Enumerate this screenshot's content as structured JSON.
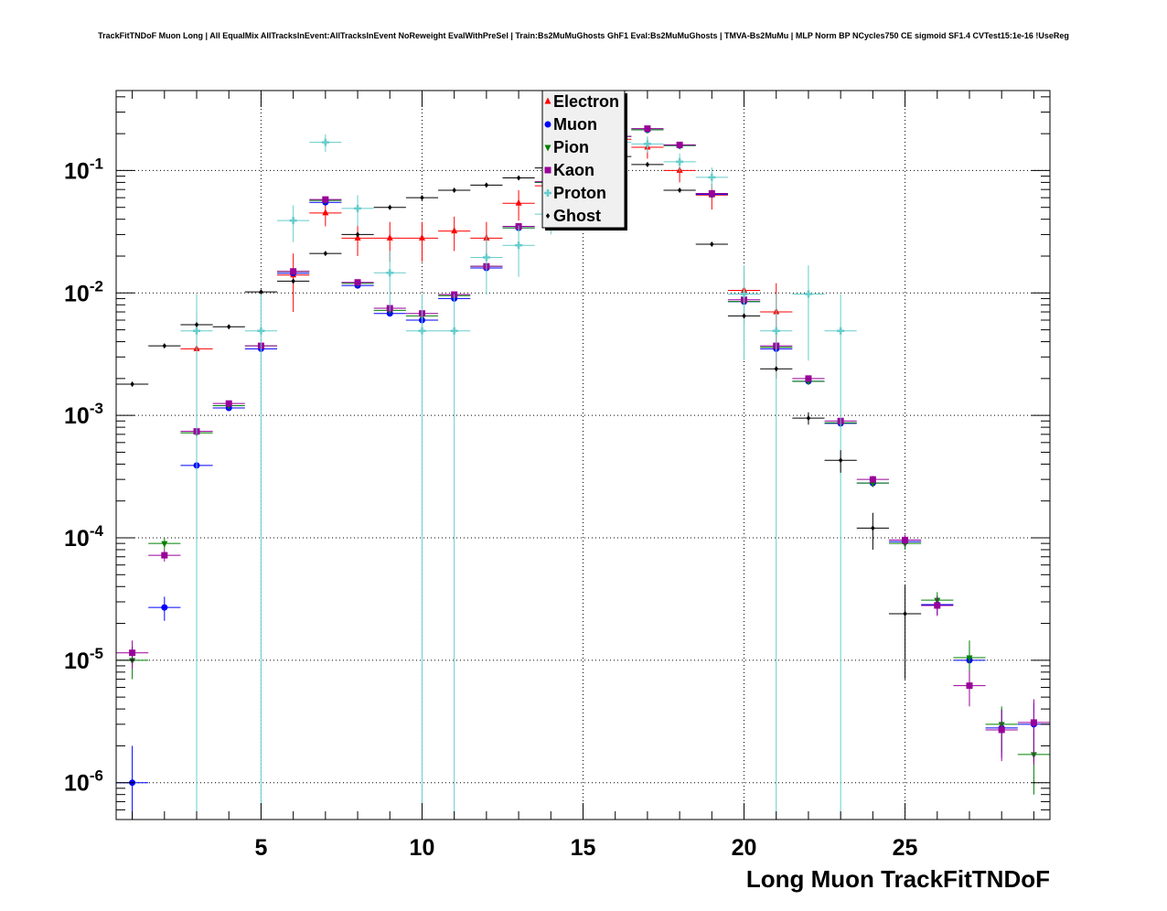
{
  "title": "TrackFitTNDoF Muon Long | All EqualMix AllTracksInEvent:AllTracksInEvent NoReweight EvalWithPreSel | Train:Bs2MuMuGhosts GhF1 Eval:Bs2MuMuGhosts | TMVA-Bs2MuMu | MLP Norm BP NCycles750 CE sigmoid SF1.4 CVTest15:1e-16 !UseReg",
  "chart_data": {
    "type": "scatter",
    "xlabel": "Long Muon TrackFitTNDoF",
    "ylabel": "",
    "xlim": [
      0.5,
      29.5
    ],
    "ylim": [
      5e-07,
      0.45
    ],
    "yscale": "log",
    "grid": true,
    "legend_position": "top-center",
    "x_ticks": [
      5,
      10,
      15,
      20,
      25
    ],
    "y_ticks": [
      {
        "value": 1e-06,
        "base": "10",
        "exp": "-6"
      },
      {
        "value": 1e-05,
        "base": "10",
        "exp": "-5"
      },
      {
        "value": 0.0001,
        "base": "10",
        "exp": "-4"
      },
      {
        "value": 0.001,
        "base": "10",
        "exp": "-3"
      },
      {
        "value": 0.01,
        "base": "10",
        "exp": "-2"
      },
      {
        "value": 0.1,
        "base": "10",
        "exp": "-1"
      }
    ],
    "series": [
      {
        "name": "Electron",
        "color": "#ff0000",
        "marker": "triangle-up",
        "points": [
          [
            3,
            0.0035,
            0.0034
          ],
          [
            6,
            0.014,
            0.007
          ],
          [
            7,
            0.045,
            0.01
          ],
          [
            8,
            0.028,
            0.008
          ],
          [
            9,
            0.028,
            0.01
          ],
          [
            10,
            0.028,
            0.01
          ],
          [
            11,
            0.032,
            0.01
          ],
          [
            12,
            0.028,
            0.01
          ],
          [
            13,
            0.054,
            0.015
          ],
          [
            14,
            0.075,
            0.02
          ],
          [
            15,
            0.13,
            0.03
          ],
          [
            16,
            0.18,
            0.04
          ],
          [
            17,
            0.155,
            0.03
          ],
          [
            18,
            0.1,
            0.02
          ],
          [
            19,
            0.063,
            0.015
          ],
          [
            20,
            0.0105,
            0.005
          ],
          [
            21,
            0.007,
            0.005
          ]
        ]
      },
      {
        "name": "Muon",
        "color": "#0000ff",
        "marker": "circle",
        "points": [
          [
            1,
            1e-06,
            1e-06
          ],
          [
            2,
            2.7e-05,
            6e-06
          ],
          [
            3,
            0.00039,
            1.5e-05
          ],
          [
            4,
            0.00115,
            5e-05
          ],
          [
            5,
            0.0035,
            0.0001
          ],
          [
            6,
            0.0145,
            0.0003
          ],
          [
            7,
            0.055,
            0.0006
          ],
          [
            8,
            0.0115,
            0.0002
          ],
          [
            9,
            0.0068,
            0.00015
          ],
          [
            10,
            0.006,
            0.00015
          ],
          [
            11,
            0.009,
            0.0002
          ],
          [
            12,
            0.016,
            0.0003
          ],
          [
            13,
            0.034,
            0.0005
          ],
          [
            14,
            0.08,
            0.0008
          ],
          [
            15,
            0.13,
            0.001
          ],
          [
            16,
            0.19,
            0.0015
          ],
          [
            17,
            0.215,
            0.0015
          ],
          [
            18,
            0.16,
            0.0012
          ],
          [
            19,
            0.064,
            0.0008
          ],
          [
            20,
            0.0085,
            0.0002
          ],
          [
            21,
            0.0035,
            0.00012
          ],
          [
            22,
            0.0019,
            8e-05
          ],
          [
            23,
            0.00086,
            5e-05
          ],
          [
            24,
            0.00028,
            2e-05
          ],
          [
            25,
            9.3e-05,
            1e-05
          ],
          [
            26,
            2.85e-05,
            5e-06
          ],
          [
            27,
            1e-05,
            3e-06
          ],
          [
            28,
            2.8e-06,
            1.2e-06
          ],
          [
            29,
            3e-06,
            1.5e-06
          ]
        ]
      },
      {
        "name": "Pion",
        "color": "#008000",
        "marker": "triangle-down",
        "points": [
          [
            1,
            1e-05,
            3e-06
          ],
          [
            2,
            9e-05,
            1e-05
          ],
          [
            3,
            0.00072,
            3e-05
          ],
          [
            4,
            0.0012,
            5e-05
          ],
          [
            5,
            0.0037,
            0.0001
          ],
          [
            6,
            0.015,
            0.0003
          ],
          [
            7,
            0.057,
            0.0006
          ],
          [
            8,
            0.012,
            0.0002
          ],
          [
            9,
            0.0072,
            0.00015
          ],
          [
            10,
            0.0065,
            0.00015
          ],
          [
            11,
            0.0095,
            0.0002
          ],
          [
            12,
            0.0165,
            0.0003
          ],
          [
            13,
            0.034,
            0.0005
          ],
          [
            14,
            0.08,
            0.0008
          ],
          [
            15,
            0.13,
            0.001
          ],
          [
            16,
            0.19,
            0.0015
          ],
          [
            17,
            0.215,
            0.0015
          ],
          [
            18,
            0.16,
            0.0012
          ],
          [
            19,
            0.065,
            0.0008
          ],
          [
            20,
            0.0085,
            0.0002
          ],
          [
            21,
            0.0036,
            0.00012
          ],
          [
            22,
            0.0019,
            8e-05
          ],
          [
            23,
            0.00087,
            5e-05
          ],
          [
            24,
            0.00028,
            2e-05
          ],
          [
            25,
            9e-05,
            1e-05
          ],
          [
            26,
            3.1e-05,
            5e-06
          ],
          [
            27,
            1.05e-05,
            4e-06
          ],
          [
            28,
            3e-06,
            1.2e-06
          ],
          [
            29,
            1.7e-06,
            9e-07
          ]
        ]
      },
      {
        "name": "Kaon",
        "color": "#990099",
        "marker": "square",
        "points": [
          [
            1,
            1.15e-05,
            3e-06
          ],
          [
            2,
            7.2e-05,
            8e-06
          ],
          [
            3,
            0.00074,
            3e-05
          ],
          [
            4,
            0.00125,
            5e-05
          ],
          [
            5,
            0.0037,
            0.0001
          ],
          [
            6,
            0.015,
            0.0003
          ],
          [
            7,
            0.058,
            0.0006
          ],
          [
            8,
            0.0122,
            0.0002
          ],
          [
            9,
            0.0075,
            0.00015
          ],
          [
            10,
            0.0068,
            0.00015
          ],
          [
            11,
            0.0097,
            0.0002
          ],
          [
            12,
            0.0165,
            0.0003
          ],
          [
            13,
            0.035,
            0.0005
          ],
          [
            14,
            0.081,
            0.0008
          ],
          [
            15,
            0.13,
            0.001
          ],
          [
            16,
            0.19,
            0.0015
          ],
          [
            17,
            0.22,
            0.0015
          ],
          [
            18,
            0.162,
            0.0012
          ],
          [
            19,
            0.065,
            0.0008
          ],
          [
            20,
            0.0088,
            0.0002
          ],
          [
            21,
            0.0037,
            0.00012
          ],
          [
            22,
            0.002,
            8e-05
          ],
          [
            23,
            0.0009,
            5e-05
          ],
          [
            24,
            0.0003,
            2e-05
          ],
          [
            25,
            9.6e-05,
            1e-05
          ],
          [
            26,
            2.8e-05,
            5e-06
          ],
          [
            27,
            6.2e-06,
            2e-06
          ],
          [
            28,
            2.7e-06,
            1.2e-06
          ],
          [
            29,
            3.1e-06,
            1.7e-06
          ]
        ]
      },
      {
        "name": "Proton",
        "color": "#66cccc",
        "marker": "plus",
        "points": [
          [
            3,
            0.0049,
            0.0049
          ],
          [
            5,
            0.0049,
            0.0049
          ],
          [
            6,
            0.039,
            0.013
          ],
          [
            7,
            0.17,
            0.028
          ],
          [
            8,
            0.049,
            0.014
          ],
          [
            9,
            0.0146,
            0.0075
          ],
          [
            10,
            0.0049,
            0.0049
          ],
          [
            11,
            0.0049,
            0.0049
          ],
          [
            12,
            0.0195,
            0.0098
          ],
          [
            13,
            0.0245,
            0.011
          ],
          [
            14,
            0.044,
            0.014
          ],
          [
            15,
            0.09,
            0.02
          ],
          [
            16,
            0.17,
            0.025
          ],
          [
            17,
            0.165,
            0.025
          ],
          [
            18,
            0.118,
            0.02
          ],
          [
            19,
            0.088,
            0.018
          ],
          [
            20,
            0.0098,
            0.007
          ],
          [
            21,
            0.0049,
            0.0049
          ],
          [
            22,
            0.0098,
            0.007
          ],
          [
            23,
            0.0049,
            0.0049
          ]
        ]
      },
      {
        "name": "Ghost",
        "color": "#000000",
        "marker": "diamond",
        "points": [
          [
            1,
            0.0018,
            8e-05
          ],
          [
            2,
            0.0037,
            0.0001
          ],
          [
            3,
            0.0055,
            0.00012
          ],
          [
            4,
            0.0053,
            0.00012
          ],
          [
            5,
            0.0102,
            0.00017
          ],
          [
            6,
            0.0125,
            0.00019
          ],
          [
            7,
            0.021,
            0.00025
          ],
          [
            8,
            0.03,
            0.0003
          ],
          [
            9,
            0.05,
            0.0004
          ],
          [
            10,
            0.06,
            0.00045
          ],
          [
            11,
            0.069,
            0.0005
          ],
          [
            12,
            0.076,
            0.0005
          ],
          [
            13,
            0.087,
            0.00055
          ],
          [
            14,
            0.105,
            0.0006
          ],
          [
            15,
            0.12,
            0.00065
          ],
          [
            16,
            0.13,
            0.0007
          ],
          [
            17,
            0.112,
            0.00065
          ],
          [
            18,
            0.069,
            0.0005
          ],
          [
            19,
            0.025,
            0.0003
          ],
          [
            20,
            0.0065,
            0.00015
          ],
          [
            21,
            0.0024,
            0.0001
          ],
          [
            22,
            0.00095,
            0.00011
          ],
          [
            23,
            0.00043,
            9e-05
          ],
          [
            24,
            0.00012,
            4e-05
          ],
          [
            25,
            2.4e-05,
            1.7e-05
          ]
        ]
      }
    ]
  }
}
